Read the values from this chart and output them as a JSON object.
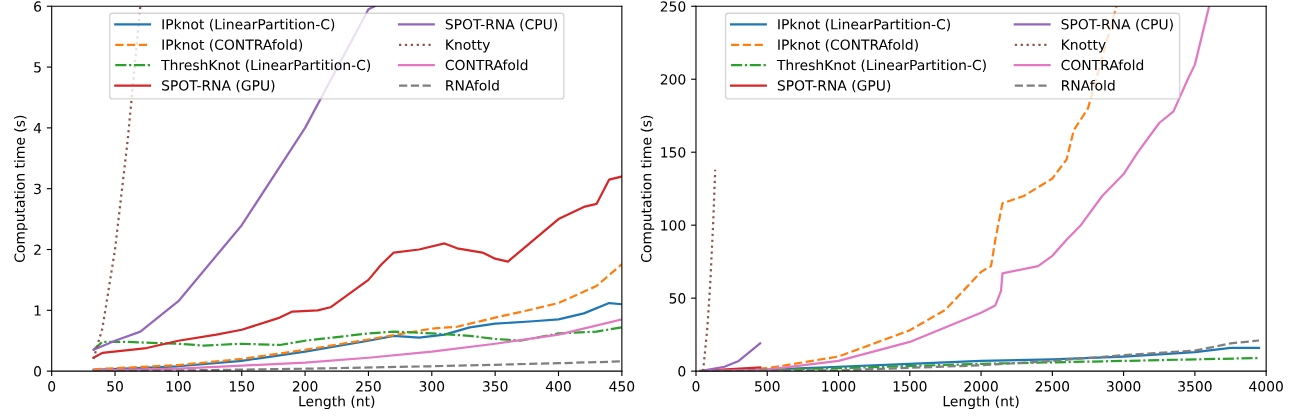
{
  "chart_data": [
    {
      "type": "line",
      "xlabel": "Length (nt)",
      "ylabel": "Computation time (s)",
      "xlim": [
        0,
        450
      ],
      "ylim": [
        0,
        6
      ],
      "xticks": [
        0,
        50,
        100,
        150,
        200,
        250,
        300,
        350,
        400,
        450
      ],
      "yticks": [
        0,
        1,
        2,
        3,
        4,
        5,
        6
      ],
      "grid": false,
      "legend": "top",
      "marker": "none",
      "series": [
        {
          "name": "IPknot (LinearPartition-C)",
          "color": "#1f77b4",
          "line_style": "solid",
          "x": [
            33,
            100,
            150,
            200,
            250,
            270,
            290,
            310,
            330,
            350,
            380,
            400,
            420,
            440,
            450
          ],
          "values": [
            0.02,
            0.08,
            0.17,
            0.32,
            0.5,
            0.58,
            0.55,
            0.6,
            0.72,
            0.78,
            0.82,
            0.85,
            0.95,
            1.12,
            1.1
          ]
        },
        {
          "name": "IPknot (CONTRAfold)",
          "color": "#ff7f0e",
          "line_style": "dashed",
          "x": [
            33,
            100,
            150,
            200,
            250,
            300,
            320,
            350,
            380,
            400,
            430,
            450
          ],
          "values": [
            0.03,
            0.1,
            0.2,
            0.35,
            0.52,
            0.7,
            0.73,
            0.88,
            1.02,
            1.12,
            1.4,
            1.76
          ]
        },
        {
          "name": "ThreshKnot (LinearPartition-C)",
          "color": "#2ca02c",
          "line_style": "dashdot",
          "x": [
            33,
            40,
            60,
            100,
            120,
            150,
            180,
            200,
            250,
            270,
            300,
            330,
            350,
            370,
            400,
            430,
            450
          ],
          "values": [
            0.35,
            0.48,
            0.48,
            0.45,
            0.42,
            0.45,
            0.43,
            0.5,
            0.62,
            0.65,
            0.62,
            0.58,
            0.53,
            0.5,
            0.62,
            0.65,
            0.72
          ]
        },
        {
          "name": "SPOT-RNA (GPU)",
          "color": "#d62728",
          "line_style": "solid",
          "x": [
            33,
            40,
            75,
            100,
            130,
            150,
            180,
            190,
            210,
            220,
            250,
            260,
            270,
            290,
            310,
            320,
            340,
            350,
            360,
            380,
            400,
            420,
            430,
            440,
            450
          ],
          "values": [
            0.22,
            0.3,
            0.38,
            0.5,
            0.6,
            0.68,
            0.88,
            0.98,
            1.0,
            1.05,
            1.5,
            1.75,
            1.95,
            2.0,
            2.1,
            2.02,
            1.95,
            1.85,
            1.8,
            2.15,
            2.5,
            2.7,
            2.75,
            3.15,
            3.2
          ]
        },
        {
          "name": "SPOT-RNA (CPU)",
          "color": "#9467bd",
          "line_style": "solid",
          "x": [
            33,
            50,
            70,
            100,
            150,
            200,
            250,
            255
          ],
          "values": [
            0.35,
            0.5,
            0.65,
            1.15,
            2.4,
            4.0,
            5.95,
            6.0
          ]
        },
        {
          "name": "Knotty",
          "color": "#8c564b",
          "line_style": "dotted",
          "x": [
            33,
            40,
            50,
            60,
            70
          ],
          "values": [
            0.2,
            0.7,
            2.0,
            3.8,
            6.0
          ]
        },
        {
          "name": "CONTRAfold",
          "color": "#e377c2",
          "line_style": "solid",
          "x": [
            33,
            100,
            150,
            200,
            250,
            300,
            350,
            400,
            450
          ],
          "values": [
            0.01,
            0.04,
            0.09,
            0.14,
            0.22,
            0.32,
            0.45,
            0.6,
            0.85
          ]
        },
        {
          "name": "RNAfold",
          "color": "#7f7f7f",
          "line_style": "dashed",
          "x": [
            33,
            100,
            200,
            300,
            400,
            450
          ],
          "values": [
            0.0,
            0.01,
            0.04,
            0.08,
            0.13,
            0.16
          ]
        }
      ]
    },
    {
      "type": "line",
      "xlabel": "Length (nt)",
      "ylabel": "Computation time (s)",
      "xlim": [
        0,
        4000
      ],
      "ylim": [
        0,
        250
      ],
      "xticks": [
        0,
        500,
        1000,
        1500,
        2000,
        2500,
        3000,
        3500,
        4000
      ],
      "yticks": [
        0,
        50,
        100,
        150,
        200,
        250
      ],
      "grid": false,
      "legend": "top",
      "marker": "none",
      "series": [
        {
          "name": "IPknot (LinearPartition-C)",
          "color": "#1f77b4",
          "line_style": "solid",
          "x": [
            30,
            500,
            1000,
            1500,
            2000,
            2500,
            3000,
            3500,
            3750,
            3950
          ],
          "values": [
            0,
            1,
            3,
            5,
            7,
            8,
            10,
            13,
            16,
            16
          ]
        },
        {
          "name": "IPknot (CONTRAfold)",
          "color": "#ff7f0e",
          "line_style": "dashed",
          "x": [
            30,
            500,
            1000,
            1500,
            1750,
            2000,
            2070,
            2100,
            2150,
            2300,
            2500,
            2600,
            2650,
            2750,
            2950
          ],
          "values": [
            0,
            2,
            10,
            28,
            42,
            68,
            72,
            90,
            115,
            120,
            132,
            145,
            165,
            180,
            250
          ]
        },
        {
          "name": "ThreshKnot (LinearPartition-C)",
          "color": "#2ca02c",
          "line_style": "dashdot",
          "x": [
            30,
            500,
            1000,
            2000,
            3000,
            3950
          ],
          "values": [
            0,
            1,
            2,
            5,
            7,
            9
          ]
        },
        {
          "name": "SPOT-RNA (GPU)",
          "color": "#d62728",
          "line_style": "solid",
          "x": [
            30,
            450
          ],
          "values": [
            0.2,
            2.5
          ]
        },
        {
          "name": "SPOT-RNA (CPU)",
          "color": "#9467bd",
          "line_style": "solid",
          "x": [
            30,
            200,
            300,
            450
          ],
          "values": [
            0,
            3,
            7,
            19
          ]
        },
        {
          "name": "Knotty",
          "color": "#8c564b",
          "line_style": "dotted",
          "x": [
            50,
            80,
            100,
            120,
            135
          ],
          "values": [
            0,
            30,
            60,
            100,
            138
          ]
        },
        {
          "name": "CONTRAfold",
          "color": "#e377c2",
          "line_style": "solid",
          "x": [
            30,
            500,
            1000,
            1500,
            2000,
            2100,
            2140,
            2150,
            2400,
            2500,
            2600,
            2700,
            2850,
            3000,
            3100,
            3250,
            3350,
            3450,
            3500,
            3550,
            3600
          ],
          "values": [
            0,
            1,
            7,
            20,
            40,
            45,
            55,
            67,
            72,
            79,
            90,
            100,
            120,
            135,
            150,
            170,
            178,
            200,
            210,
            230,
            250
          ]
        },
        {
          "name": "RNAfold",
          "color": "#7f7f7f",
          "line_style": "dashed",
          "x": [
            30,
            500,
            1000,
            2000,
            2500,
            3000,
            3500,
            3750,
            3950
          ],
          "values": [
            0,
            0.5,
            0.5,
            4,
            7,
            11,
            14,
            19,
            21
          ]
        }
      ]
    }
  ]
}
